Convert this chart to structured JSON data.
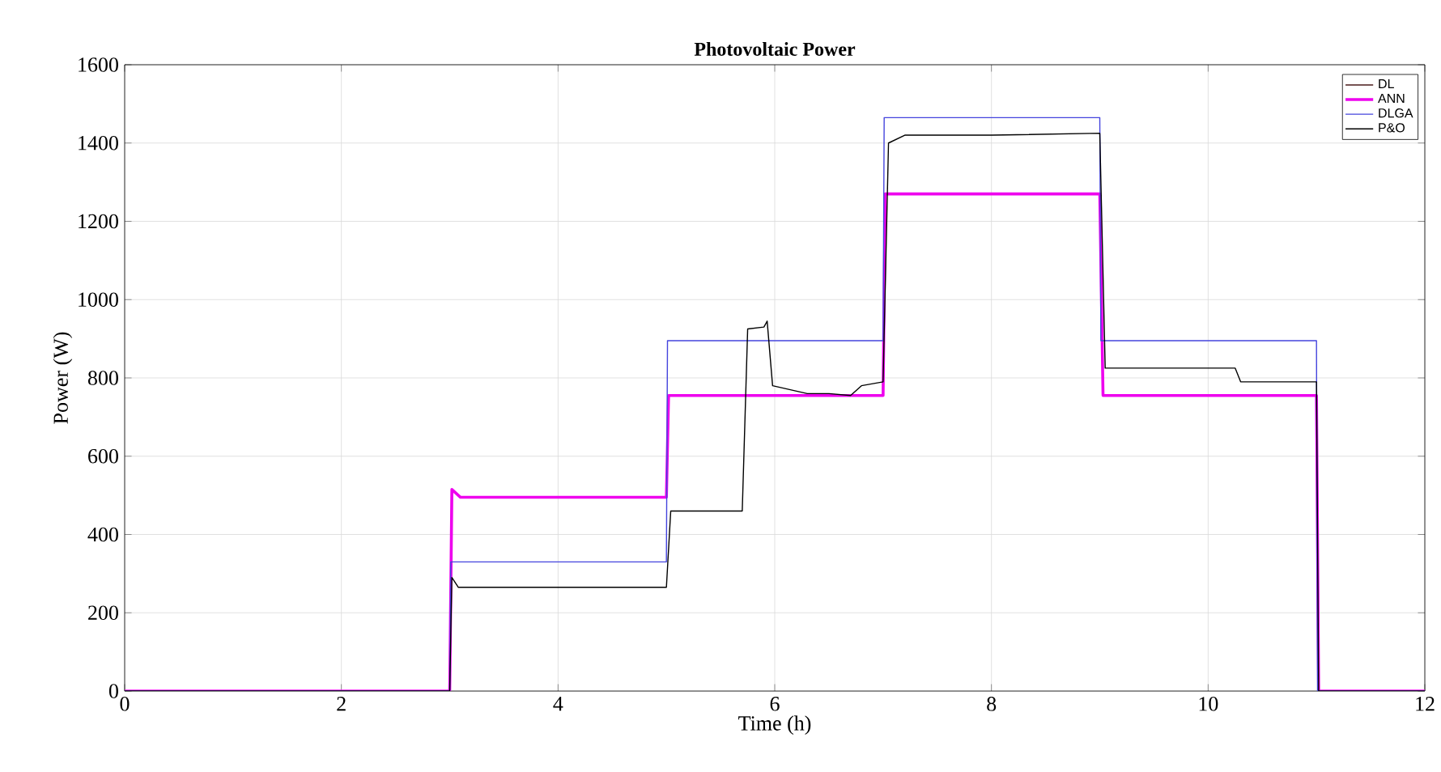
{
  "chart_data": {
    "type": "line",
    "title": "Photovoltaic Power",
    "xlabel": "Time (h)",
    "ylabel": "Power (W)",
    "xlim": [
      0,
      12
    ],
    "xticks": [
      0,
      2,
      4,
      6,
      8,
      10,
      12
    ],
    "ylim": [
      0,
      1600
    ],
    "yticks": [
      0,
      200,
      400,
      600,
      800,
      1000,
      1200,
      1400,
      1600
    ],
    "grid": true,
    "legend": "top right",
    "series": [
      {
        "name": "DL",
        "color": "#4a1a1a"
      },
      {
        "name": "ANN",
        "color": "#ee00ee",
        "x": [
          0,
          3.0,
          3.02,
          3.1,
          5.0,
          5.02,
          7.0,
          7.02,
          9.0,
          9.03,
          11.0,
          11.02,
          12
        ],
        "values": [
          0,
          0,
          515,
          495,
          495,
          755,
          755,
          1270,
          1270,
          755,
          755,
          0,
          0
        ]
      },
      {
        "name": "DLGA",
        "color": "#4444dd",
        "x": [
          0,
          3.0,
          3.01,
          5.0,
          5.01,
          7.0,
          7.01,
          9.0,
          9.01,
          11.0,
          11.01,
          12
        ],
        "values": [
          0,
          0,
          330,
          330,
          895,
          895,
          1465,
          1465,
          895,
          895,
          0,
          0
        ]
      },
      {
        "name": "P&O",
        "color": "#000000",
        "x": [
          0,
          3.0,
          3.02,
          3.08,
          5.0,
          5.04,
          5.7,
          5.75,
          5.9,
          5.93,
          5.98,
          6.3,
          6.5,
          6.7,
          6.8,
          7.0,
          7.05,
          7.2,
          8.0,
          9.0,
          9.05,
          10.25,
          10.3,
          10.6,
          11.0,
          11.02,
          12
        ],
        "values": [
          0,
          0,
          290,
          265,
          265,
          460,
          460,
          925,
          930,
          945,
          780,
          760,
          760,
          755,
          780,
          790,
          1400,
          1420,
          1420,
          1425,
          825,
          825,
          790,
          790,
          790,
          0,
          0
        ]
      }
    ]
  }
}
